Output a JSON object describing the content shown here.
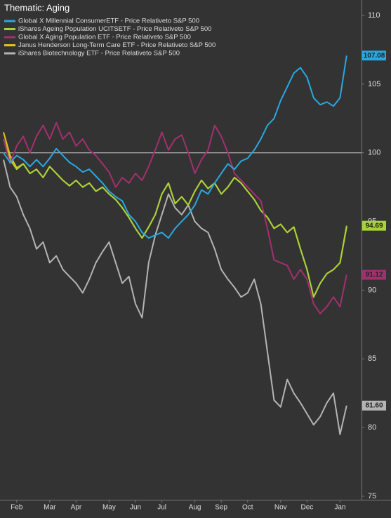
{
  "chart_data": {
    "type": "line",
    "title": "Thematic: Aging",
    "categories": [
      null,
      null,
      "Feb",
      null,
      null,
      null,
      null,
      "Mar",
      null,
      null,
      null,
      "Apr",
      null,
      null,
      null,
      null,
      "May",
      null,
      null,
      null,
      "Jun",
      null,
      null,
      null,
      "Jul",
      null,
      null,
      null,
      null,
      "Aug",
      null,
      null,
      null,
      "Sep",
      null,
      null,
      null,
      "Oct",
      null,
      null,
      null,
      null,
      "Nov",
      null,
      null,
      null,
      "Dec",
      null,
      null,
      null,
      null,
      "Jan",
      null
    ],
    "ylim": [
      75,
      110
    ],
    "yticks": [
      75,
      80,
      85,
      90,
      95,
      100,
      105,
      110
    ],
    "reference_line": 100,
    "series": [
      {
        "name": "Global X Millennial ConsumerETF - Price Relativeto S&P 500",
        "color": "#29a8e0",
        "last_label": "107.08",
        "values": [
          100.0,
          99.3,
          99.8,
          99.5,
          99.0,
          99.5,
          99.0,
          99.6,
          100.3,
          99.8,
          99.3,
          99.0,
          98.6,
          98.8,
          98.3,
          97.8,
          97.2,
          96.8,
          96.5,
          95.5,
          95.0,
          94.2,
          93.8,
          94.0,
          94.2,
          93.8,
          94.5,
          95.0,
          95.5,
          96.2,
          97.3,
          97.0,
          97.8,
          98.5,
          99.2,
          98.8,
          99.4,
          99.6,
          100.2,
          101.0,
          102.0,
          102.5,
          103.8,
          104.8,
          105.8,
          106.2,
          105.5,
          104.0,
          103.5,
          103.7,
          103.4,
          104.0,
          107.08
        ]
      },
      {
        "name": "iShares Ageing Population UCITSETF - Price Relativeto S&P 500",
        "color": "#a8d23a",
        "last_label": "94.69",
        "values": [
          101.0,
          99.5,
          98.8,
          99.2,
          98.5,
          98.8,
          98.2,
          99.0,
          98.5,
          98.0,
          97.6,
          98.0,
          97.5,
          97.8,
          97.2,
          97.5,
          97.0,
          96.6,
          96.0,
          95.3,
          94.5,
          93.8,
          94.6,
          95.5,
          97.0,
          97.8,
          96.3,
          96.8,
          96.2,
          97.2,
          98.0,
          97.4,
          97.8,
          97.0,
          97.5,
          98.2,
          97.8,
          97.2,
          96.6,
          95.8,
          95.3,
          94.5,
          94.8,
          94.2,
          94.6,
          93.0,
          91.5,
          89.5,
          90.5,
          91.2,
          91.5,
          92.0,
          94.69
        ]
      },
      {
        "name": "Global X Aging Population ETF - Price Relativeto S&P 500",
        "color": "#a3306e",
        "last_label": "91.12",
        "values": [
          101.0,
          99.2,
          100.5,
          101.2,
          100.0,
          101.2,
          102.0,
          101.0,
          102.2,
          101.0,
          101.5,
          100.5,
          101.0,
          100.2,
          99.8,
          99.2,
          98.6,
          97.5,
          98.2,
          97.8,
          98.5,
          98.0,
          99.0,
          100.2,
          101.5,
          100.2,
          101.0,
          101.3,
          100.0,
          98.5,
          99.5,
          100.2,
          102.0,
          101.2,
          100.0,
          98.5,
          98.0,
          97.5,
          97.0,
          96.5,
          94.5,
          92.2,
          92.0,
          91.8,
          90.8,
          91.5,
          90.8,
          89.0,
          88.3,
          88.8,
          89.5,
          88.8,
          91.12
        ]
      },
      {
        "name": "Janus Henderson Long-Term Care ETF - Price Relativeto S&P 500",
        "color": "#e8c21a",
        "values": [
          101.5,
          99.8,
          98.9,
          99.2,
          98.5,
          98.8,
          98.2,
          99.0,
          98.5,
          98.0,
          97.6,
          98.0,
          97.5,
          97.8,
          97.2,
          97.5,
          97.0,
          96.6,
          96.0,
          95.3,
          94.5,
          93.8,
          94.6,
          95.5,
          97.0,
          97.8,
          96.3,
          96.8,
          96.2,
          97.2,
          98.0,
          97.4,
          97.8,
          97.0,
          97.5,
          98.2,
          97.8,
          97.2,
          96.6,
          95.8,
          95.3,
          94.5,
          94.8,
          94.2,
          94.6,
          93.0,
          91.5,
          89.5,
          90.5,
          91.2,
          91.5,
          92.0,
          94.6
        ]
      },
      {
        "name": "iShares Biotechnology ETF - Price Relativeto S&P 500",
        "color": "#b4b4b4",
        "last_label": "81.60",
        "values": [
          99.5,
          97.5,
          96.8,
          95.5,
          94.5,
          93.0,
          93.5,
          92.0,
          92.5,
          91.5,
          91.0,
          90.5,
          89.8,
          90.8,
          92.0,
          92.8,
          93.5,
          92.0,
          90.5,
          91.0,
          89.0,
          88.0,
          92.0,
          94.0,
          95.5,
          97.0,
          96.0,
          95.5,
          96.2,
          95.0,
          94.5,
          94.2,
          93.0,
          91.5,
          90.8,
          90.2,
          89.5,
          89.8,
          90.8,
          89.0,
          85.5,
          82.0,
          81.5,
          83.5,
          82.5,
          81.8,
          81.0,
          80.2,
          80.8,
          81.8,
          82.5,
          79.5,
          81.6
        ]
      }
    ]
  }
}
